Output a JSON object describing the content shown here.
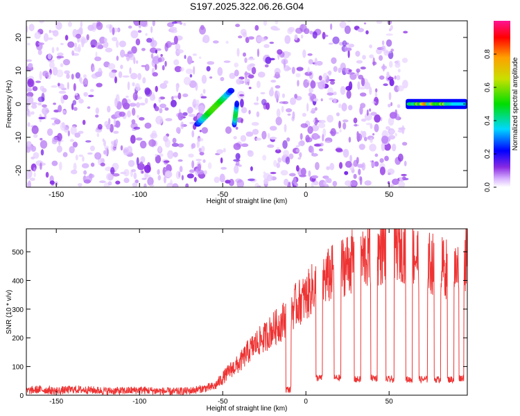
{
  "chart_data": [
    {
      "type": "heatmap",
      "title": "S197.2025.322.06.26.G04",
      "xlabel": "Height of straight line (km)",
      "ylabel": "Frequency (Hz)",
      "xlim": [
        -168,
        97
      ],
      "ylim": [
        -25,
        25
      ],
      "xticks": [
        -150,
        -100,
        -50,
        0,
        50
      ],
      "yticks": [
        -20,
        -10,
        0,
        10,
        20
      ],
      "colorbar": {
        "label": "Normalized spectral amplitude",
        "range": [
          0,
          1
        ],
        "ticks": [
          0.0,
          0.2,
          0.4,
          0.6,
          0.8
        ]
      },
      "features": [
        {
          "name": "tilted streak 1",
          "x_range": [
            -65,
            -45
          ],
          "freq_range": [
            -6,
            4
          ],
          "peak_amplitude": 0.55
        },
        {
          "name": "tilted streak 2",
          "x_range": [
            -45,
            -40
          ],
          "freq_range": [
            -6,
            0
          ],
          "peak_amplitude": 0.45
        },
        {
          "name": "horizontal line",
          "x_range": [
            60,
            97
          ],
          "freq": 0,
          "peak_amplitude": 1.0
        }
      ]
    },
    {
      "type": "line",
      "xlabel": "Height of straight line (km)",
      "ylabel": "SNR (10 * v/v)",
      "xlim": [
        -168,
        97
      ],
      "ylim": [
        0,
        580
      ],
      "xticks": [
        -150,
        -100,
        -50,
        0,
        50
      ],
      "yticks": [
        0,
        100,
        200,
        300,
        400,
        500
      ],
      "series": [
        {
          "name": "SNR",
          "color": "#ee3333",
          "x": [
            -168,
            -160,
            -150,
            -140,
            -130,
            -120,
            -110,
            -100,
            -90,
            -80,
            -70,
            -60,
            -55,
            -50,
            -45,
            -40,
            -35,
            -30,
            -25,
            -20,
            -15,
            -10,
            -5,
            0,
            5,
            10,
            15,
            20,
            25,
            30,
            35,
            40,
            45,
            50,
            55,
            60,
            65,
            70,
            75,
            80,
            85,
            90,
            95
          ],
          "values": [
            15,
            20,
            15,
            20,
            18,
            15,
            15,
            18,
            15,
            12,
            15,
            25,
            30,
            60,
            90,
            110,
            150,
            180,
            200,
            230,
            250,
            290,
            320,
            340,
            380,
            400,
            420,
            440,
            460,
            470,
            480,
            490,
            500,
            510,
            520,
            510,
            490,
            470,
            460,
            450,
            440,
            430,
            470
          ]
        }
      ],
      "dropouts": [
        {
          "x_range": [
            -12,
            -9
          ],
          "values": 20
        },
        {
          "x_range": [
            6,
            10
          ],
          "values": 60
        },
        {
          "x_range": [
            17,
            21
          ],
          "values": 60
        },
        {
          "x_range": [
            29,
            33
          ],
          "values": 55
        },
        {
          "x_range": [
            39,
            43
          ],
          "values": 60
        },
        {
          "x_range": [
            48,
            53
          ],
          "values": 55
        },
        {
          "x_range": [
            60,
            64
          ],
          "values": 55
        },
        {
          "x_range": [
            68,
            73
          ],
          "values": 55
        },
        {
          "x_range": [
            77,
            81
          ],
          "values": 55
        },
        {
          "x_range": [
            85,
            89
          ],
          "values": 55
        },
        {
          "x_range": [
            92,
            95
          ],
          "values": 60
        }
      ]
    }
  ]
}
